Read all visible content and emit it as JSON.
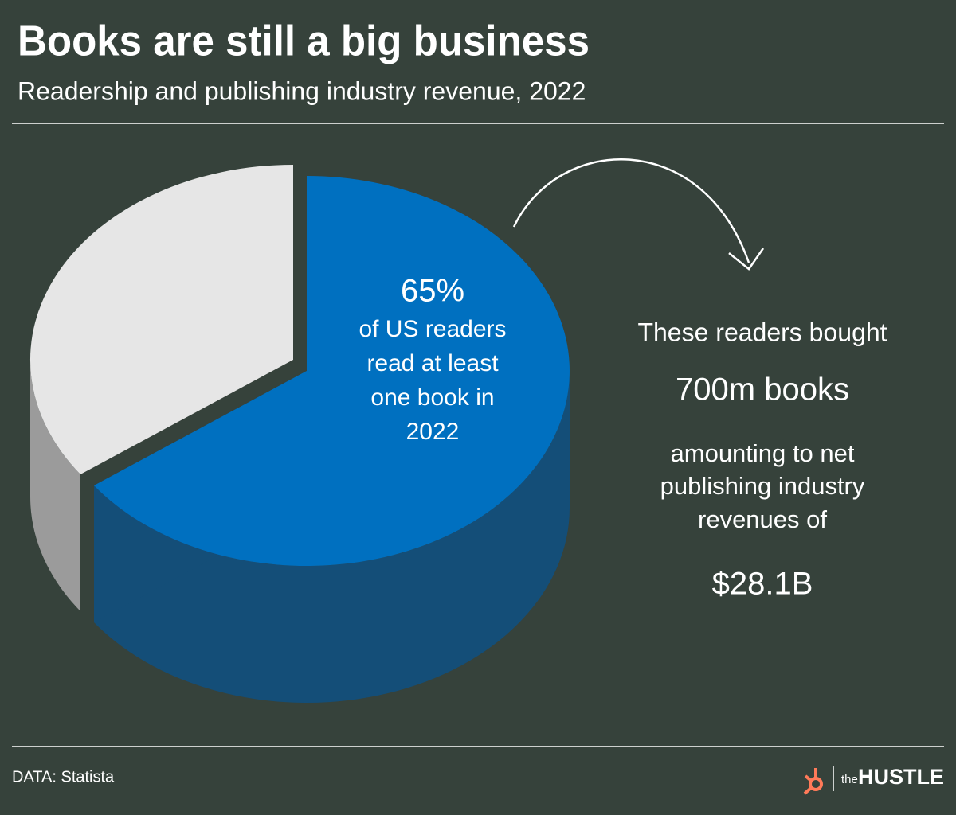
{
  "chart_data": {
    "type": "pie",
    "title": "Books are still a big business",
    "subtitle": "Readership and publishing industry revenue, 2022",
    "values": [
      65,
      35
    ],
    "value_labels": [
      "65%",
      null
    ],
    "colors": [
      "#0070c0",
      "#e6e6e6"
    ],
    "side_colors": [
      "#144e78",
      "#9b9b9b"
    ],
    "annotation_lines": [
      "of US readers",
      "read at least",
      "one book in",
      "2022"
    ]
  },
  "callout": {
    "intro": "These readers bought",
    "books": "700m books",
    "middle_lines": [
      "amounting to net",
      "publishing industry",
      "revenues of"
    ],
    "revenue": "$28.1B",
    "highlight_color": "#ee4b4b"
  },
  "footer": {
    "source": "DATA: Statista",
    "logo_prefix": "the",
    "logo": "HUSTLE"
  }
}
